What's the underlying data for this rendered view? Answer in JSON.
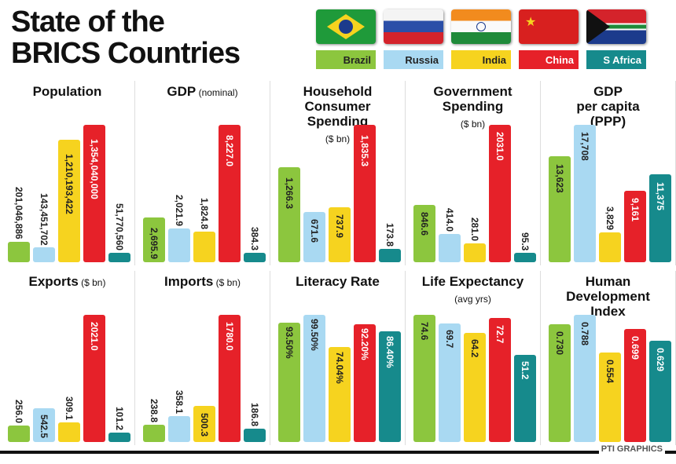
{
  "title_line1": "State of the",
  "title_line2": "BRICS Countries",
  "credit": "PTI GRAPHICS",
  "colors": {
    "Brazil": "#8cc63e",
    "Russia": "#a9d9f2",
    "India": "#f6d31f",
    "China": "#e62129",
    "S Africa": "#168a8c"
  },
  "chart_data": [
    {
      "type": "bar",
      "title": "Population",
      "subtitle": "",
      "categories": [
        "Brazil",
        "Russia",
        "India",
        "China",
        "S Africa"
      ],
      "values": [
        201046886,
        143451702,
        1210193422,
        1354040000,
        51770560
      ],
      "labels": [
        "201,046,886",
        "143,451,702",
        "1,210,193,422",
        "1,354,040,000",
        "51,770,560"
      ]
    },
    {
      "type": "bar",
      "title": "GDP",
      "subtitle": "(nominal)",
      "categories": [
        "Brazil",
        "Russia",
        "India",
        "China",
        "S Africa"
      ],
      "values": [
        2695.9,
        2021.9,
        1824.8,
        8227.0,
        384.3
      ],
      "labels": [
        "2,695.9",
        "2,021.9",
        "1,824.8",
        "8,227.0",
        "384.3"
      ]
    },
    {
      "type": "bar",
      "title": "Household\nConsumer\nSpending",
      "subtitle": "($ bn)",
      "categories": [
        "Brazil",
        "Russia",
        "India",
        "China",
        "S Africa"
      ],
      "values": [
        1266.3,
        671.6,
        737.9,
        1835.3,
        173.8
      ],
      "labels": [
        "1,266.3",
        "671.6",
        "737.9",
        "1,835.3",
        "173.8"
      ]
    },
    {
      "type": "bar",
      "title": "Government\nSpending",
      "subtitle": "($ bn)",
      "categories": [
        "Brazil",
        "Russia",
        "India",
        "China",
        "S Africa"
      ],
      "values": [
        846.6,
        414.0,
        281.0,
        2031.0,
        95.3
      ],
      "labels": [
        "846.6",
        "414.0",
        "281.0",
        "2031.0",
        "95.3"
      ]
    },
    {
      "type": "bar",
      "title": "GDP\nper capita\n(PPP)",
      "subtitle": "",
      "categories": [
        "Brazil",
        "Russia",
        "India",
        "China",
        "S Africa"
      ],
      "values": [
        13623,
        17708,
        3829,
        9161,
        11375
      ],
      "labels": [
        "13,623",
        "17,708",
        "3,829",
        "9,161",
        "11,375"
      ]
    },
    {
      "type": "bar",
      "title": "Exports",
      "subtitle": "($ bn)",
      "categories": [
        "Brazil",
        "Russia",
        "India",
        "China",
        "S Africa"
      ],
      "values": [
        256.0,
        542.5,
        309.1,
        2021.0,
        101.2
      ],
      "labels": [
        "256.0",
        "542.5",
        "309.1",
        "2021.0",
        "101.2"
      ]
    },
    {
      "type": "bar",
      "title": "Imports",
      "subtitle": "($ bn)",
      "categories": [
        "Brazil",
        "Russia",
        "India",
        "China",
        "S Africa"
      ],
      "values": [
        238.8,
        358.1,
        500.3,
        1780.0,
        186.8
      ],
      "labels": [
        "238.8",
        "358.1",
        "500.3",
        "1780.0",
        "186.8"
      ]
    },
    {
      "type": "bar",
      "title": "Literacy Rate",
      "subtitle": "",
      "categories": [
        "Brazil",
        "Russia",
        "India",
        "China",
        "S Africa"
      ],
      "values": [
        93.5,
        99.5,
        74.04,
        92.2,
        86.4
      ],
      "labels": [
        "93.50%",
        "99.50%",
        "74.04%",
        "92.20%",
        "86.40%"
      ]
    },
    {
      "type": "bar",
      "title": "Life Expectancy",
      "subtitle": "(avg yrs)",
      "categories": [
        "Brazil",
        "Russia",
        "India",
        "China",
        "S Africa"
      ],
      "values": [
        74.6,
        69.7,
        64.2,
        72.7,
        51.2
      ],
      "labels": [
        "74.6",
        "69.7",
        "64.2",
        "72.7",
        "51.2"
      ]
    },
    {
      "type": "bar",
      "title": "Human\nDevelopment\nIndex",
      "subtitle": "",
      "categories": [
        "Brazil",
        "Russia",
        "India",
        "China",
        "S Africa"
      ],
      "values": [
        0.73,
        0.788,
        0.554,
        0.699,
        0.629
      ],
      "labels": [
        "0.730",
        "0.788",
        "0.554",
        "0.699",
        "0.629"
      ]
    }
  ]
}
